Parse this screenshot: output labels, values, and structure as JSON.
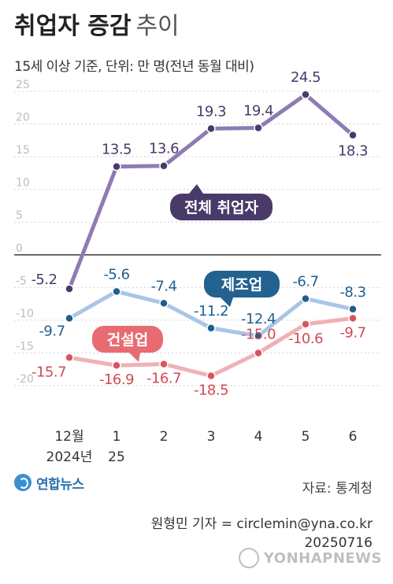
{
  "header": {
    "title_bold": "취업자 증감",
    "title_light": "추이",
    "subtitle": "15세 이상 기준, 단위: 만 명(전년 동월 대비)"
  },
  "chart_data": {
    "type": "line",
    "categories": [
      "12월",
      "1",
      "2",
      "3",
      "4",
      "5",
      "6"
    ],
    "category_sublabels": [
      "2024년",
      "25",
      "",
      "",
      "",
      "",
      ""
    ],
    "ylim": [
      -20,
      25
    ],
    "yticks": [
      25,
      20,
      15,
      10,
      5,
      0,
      -5,
      -10,
      -15,
      -20
    ],
    "grid": true,
    "series": [
      {
        "name": "전체 취업자",
        "values": [
          -5.2,
          13.5,
          13.6,
          19.3,
          19.4,
          24.5,
          18.3
        ],
        "labels": [
          "-5.2",
          "13.5",
          "13.6",
          "19.3",
          "19.4",
          "24.5",
          "18.3"
        ],
        "line_color": "#8f7bb4",
        "point_color": "#4a3a6a",
        "label_color": "#4a3a6a",
        "badge_color": "#4a3a6a"
      },
      {
        "name": "제조업",
        "values": [
          -9.7,
          -5.6,
          -7.4,
          -11.2,
          -12.4,
          -6.7,
          -8.3
        ],
        "labels": [
          "-9.7",
          "-5.6",
          "-7.4",
          "-11.2",
          "-12.4",
          "-6.7",
          "-8.3"
        ],
        "line_color": "#a9c5e8",
        "point_color": "#1f5f8f",
        "label_color": "#1f5f8f",
        "badge_color": "#23618f"
      },
      {
        "name": "건설업",
        "values": [
          -15.7,
          -16.9,
          -16.7,
          -18.5,
          -15.0,
          -10.6,
          -9.7
        ],
        "labels": [
          "-15.7",
          "-16.9",
          "-16.7",
          "-18.5",
          "-15.0",
          "-10.6",
          "-9.7"
        ],
        "line_color": "#efb1b5",
        "point_color": "#d65560",
        "label_color": "#d14a55",
        "badge_color": "#e86b72"
      }
    ]
  },
  "footer": {
    "logo_text": "연합뉴스",
    "source": "자료: 통계청",
    "credit_line1": "원형민 기자 = circlemin@yna.co.kr",
    "credit_line2": "20250716",
    "watermark": "YONHAPNEWS"
  }
}
